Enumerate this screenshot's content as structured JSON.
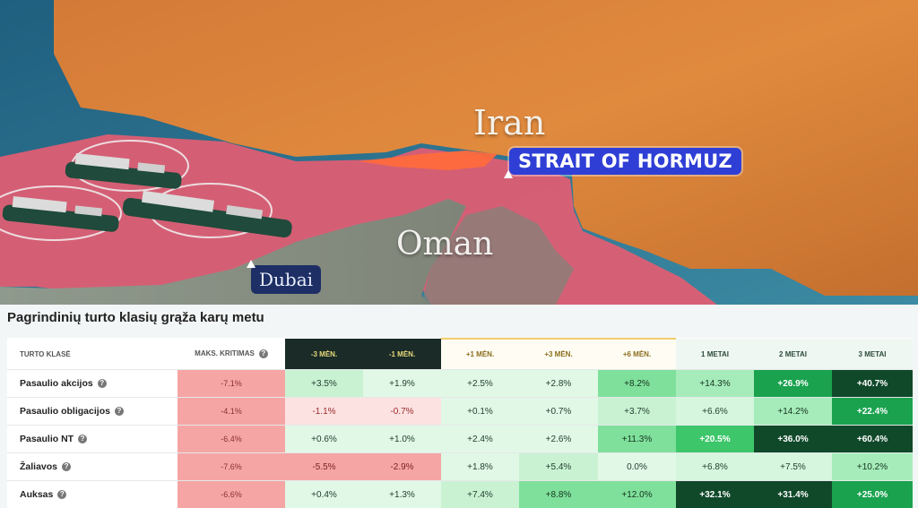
{
  "map": {
    "labels": {
      "iran": "Iran",
      "oman": "Oman",
      "strait": "STRAIT OF HORMUZ",
      "dubai": "Dubai"
    },
    "colors": {
      "land": "#d9792f",
      "sea": "#2e6f8f",
      "danger_zone": "#e35d72",
      "strait_pill": "#2f3fd6",
      "dubai_pill": "#1e2f66"
    },
    "vessels": [
      {
        "name": "ship-1"
      },
      {
        "name": "ship-2"
      },
      {
        "name": "ship-3"
      }
    ]
  },
  "panel": {
    "title": "Pagrindinių turto klasių grąža karų metu",
    "columns": [
      "TURTO KLASĖ",
      "MAKS. KRITIMAS",
      "-3 MĖN.",
      "-1 MĖN.",
      "+1 MĖN.",
      "+3 MĖN.",
      "+6 MĖN.",
      "1 METAI",
      "2 METAI",
      "3 METAI"
    ],
    "help_icon": "?",
    "rows": [
      {
        "asset": "Pasaulio akcijos",
        "values": [
          "-7.1%",
          "+3.5%",
          "+1.9%",
          "+2.5%",
          "+2.8%",
          "+8.2%",
          "+14.3%",
          "+26.9%",
          "+40.7%"
        ]
      },
      {
        "asset": "Pasaulio obligacijos",
        "values": [
          "-4.1%",
          "-1.1%",
          "-0.7%",
          "+0.1%",
          "+0.7%",
          "+3.7%",
          "+6.6%",
          "+14.2%",
          "+22.4%"
        ]
      },
      {
        "asset": "Pasaulio NT",
        "values": [
          "-6.4%",
          "+0.6%",
          "+1.0%",
          "+2.4%",
          "+2.6%",
          "+11.3%",
          "+20.5%",
          "+36.0%",
          "+60.4%"
        ]
      },
      {
        "asset": "Žaliavos",
        "values": [
          "-7.6%",
          "-5.5%",
          "-2.9%",
          "+1.8%",
          "+5.4%",
          "0.0%",
          "+6.8%",
          "+7.5%",
          "+10.2%"
        ]
      },
      {
        "asset": "Auksas",
        "values": [
          "-6.6%",
          "+0.4%",
          "+1.3%",
          "+7.4%",
          "+8.8%",
          "+12.0%",
          "+32.1%",
          "+31.4%",
          "+25.0%"
        ]
      }
    ]
  }
}
